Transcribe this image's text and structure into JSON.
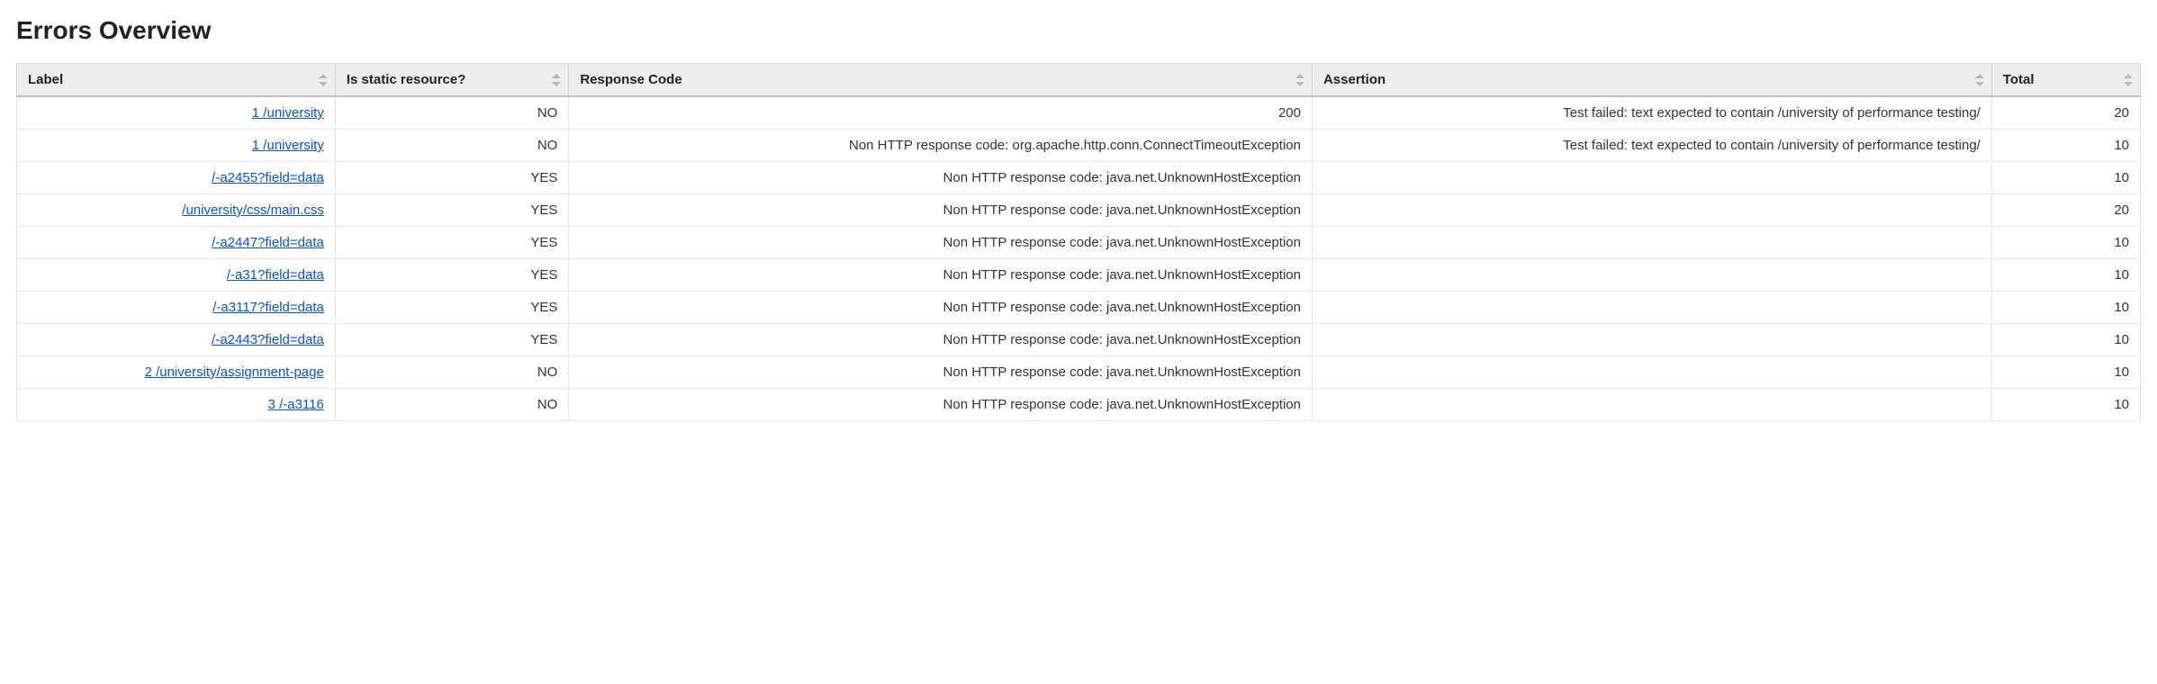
{
  "title": "Errors Overview",
  "colors": {
    "header_bg": "#eeeeee",
    "border": "#d7d7d7",
    "row_border": "#e5e5e5",
    "link": "#0a52d6",
    "text": "#333333"
  },
  "table": {
    "columns": [
      {
        "key": "label",
        "label": "Label",
        "width": "15%"
      },
      {
        "key": "is_static",
        "label": "Is static resource?",
        "width": "11%"
      },
      {
        "key": "response",
        "label": "Response Code",
        "width": "35%"
      },
      {
        "key": "assertion",
        "label": "Assertion",
        "width": "32%"
      },
      {
        "key": "total",
        "label": "Total",
        "width": "7%"
      }
    ],
    "rows": [
      {
        "label": "1 /university",
        "is_static": "NO",
        "response": "200",
        "assertion": "Test failed: text expected to contain /university of performance testing/",
        "total": "20"
      },
      {
        "label": "1 /university",
        "is_static": "NO",
        "response": "Non HTTP response code: org.apache.http.conn.ConnectTimeoutException",
        "assertion": "Test failed: text expected to contain /university of performance testing/",
        "total": "10"
      },
      {
        "label": "/-a2455?field=data",
        "is_static": "YES",
        "response": "Non HTTP response code: java.net.UnknownHostException",
        "assertion": "",
        "total": "10"
      },
      {
        "label": "/university/css/main.css",
        "is_static": "YES",
        "response": "Non HTTP response code: java.net.UnknownHostException",
        "assertion": "",
        "total": "20"
      },
      {
        "label": "/-a2447?field=data",
        "is_static": "YES",
        "response": "Non HTTP response code: java.net.UnknownHostException",
        "assertion": "",
        "total": "10"
      },
      {
        "label": "/-a31?field=data",
        "is_static": "YES",
        "response": "Non HTTP response code: java.net.UnknownHostException",
        "assertion": "",
        "total": "10"
      },
      {
        "label": "/-a3117?field=data",
        "is_static": "YES",
        "response": "Non HTTP response code: java.net.UnknownHostException",
        "assertion": "",
        "total": "10"
      },
      {
        "label": "/-a2443?field=data",
        "is_static": "YES",
        "response": "Non HTTP response code: java.net.UnknownHostException",
        "assertion": "",
        "total": "10"
      },
      {
        "label": "2 /university/assignment-page",
        "is_static": "NO",
        "response": "Non HTTP response code: java.net.UnknownHostException",
        "assertion": "",
        "total": "10"
      },
      {
        "label": "3 /-a3116",
        "is_static": "NO",
        "response": "Non HTTP response code: java.net.UnknownHostException",
        "assertion": "",
        "total": "10"
      }
    ]
  }
}
